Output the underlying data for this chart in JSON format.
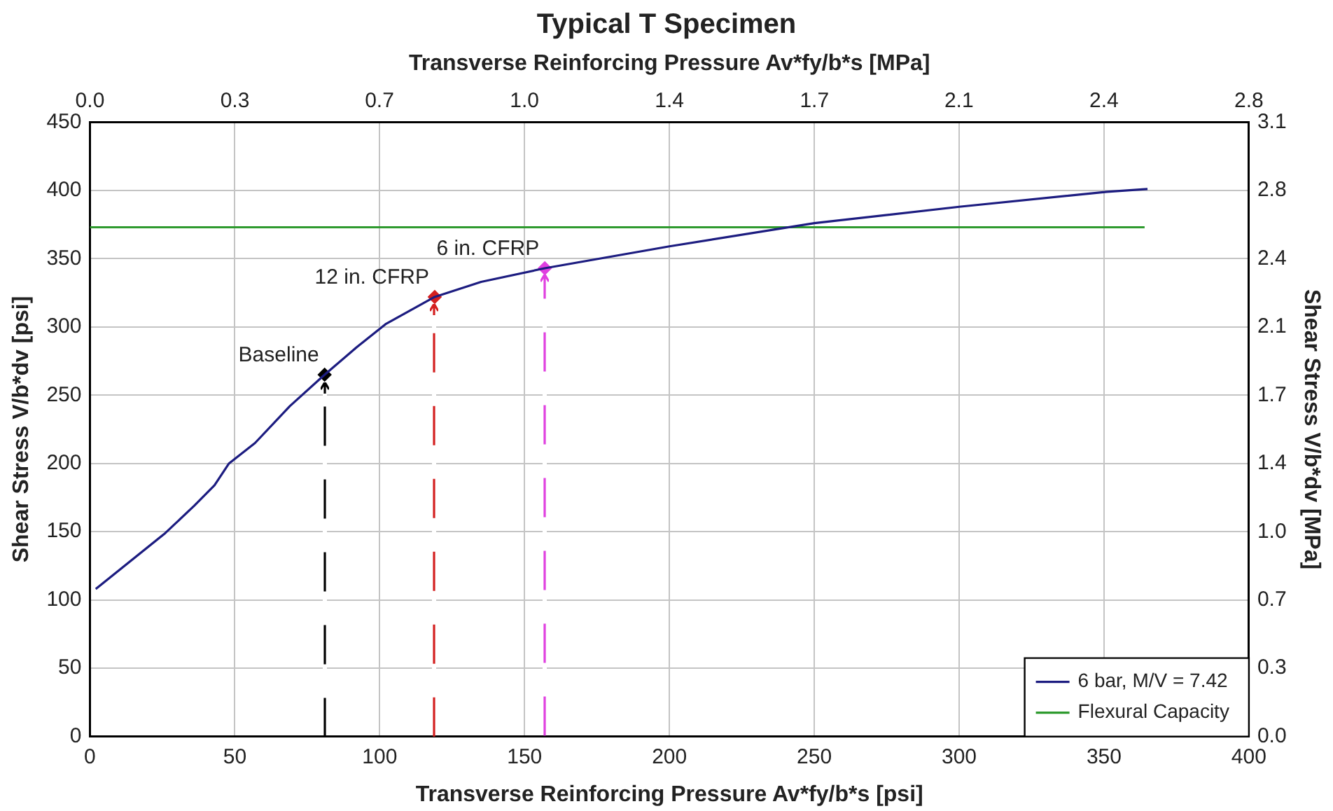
{
  "chart_data": {
    "type": "line",
    "title": "Typical T Specimen",
    "xlabel": "Transverse Reinforcing Pressure Av*fy/b*s [psi]",
    "x2label": "Transverse Reinforcing Pressure Av*fy/b*s [MPa]",
    "ylabel": "Shear Stress V/b*dv [psi]",
    "y2label": "Shear Stress V/b*dv [MPa]",
    "xlim": [
      0,
      400
    ],
    "xticks": [
      0,
      50,
      100,
      150,
      200,
      250,
      300,
      350,
      400
    ],
    "ylim": [
      0,
      450
    ],
    "yticks": [
      0,
      50,
      100,
      150,
      200,
      250,
      300,
      350,
      400,
      450
    ],
    "x2lim": [
      0,
      2.758
    ],
    "x2ticks": [
      {
        "value": 0,
        "label": "0.0"
      },
      {
        "value": 0.345,
        "label": "0.3"
      },
      {
        "value": 0.689,
        "label": "0.7"
      },
      {
        "value": 1.034,
        "label": "1.0"
      },
      {
        "value": 1.379,
        "label": "1.4"
      },
      {
        "value": 1.724,
        "label": "1.7"
      },
      {
        "value": 2.068,
        "label": "2.1"
      },
      {
        "value": 2.413,
        "label": "2.4"
      },
      {
        "value": 2.758,
        "label": "2.8"
      }
    ],
    "y2lim": [
      0,
      3.103
    ],
    "y2ticks": [
      {
        "value": 0,
        "label": "0.0"
      },
      {
        "value": 0.345,
        "label": "0.3"
      },
      {
        "value": 0.689,
        "label": "0.7"
      },
      {
        "value": 1.034,
        "label": "1.0"
      },
      {
        "value": 1.379,
        "label": "1.4"
      },
      {
        "value": 1.724,
        "label": "1.7"
      },
      {
        "value": 2.068,
        "label": "2.1"
      },
      {
        "value": 2.413,
        "label": "2.4"
      },
      {
        "value": 2.758,
        "label": "2.8"
      },
      {
        "value": 3.103,
        "label": "3.1"
      }
    ],
    "grid": true,
    "legend": "bottom right",
    "marker": "none",
    "line_style": "solid",
    "series": [
      {
        "name": "6 bar, M/V = 7.42",
        "color": "#1c1c80",
        "x": [
          2,
          26,
          36,
          43,
          48,
          57,
          69,
          81,
          92,
          102,
          119,
          135,
          157,
          200,
          250,
          300,
          351,
          365
        ],
        "values": [
          108,
          149,
          169,
          184,
          200,
          215,
          242,
          265,
          285,
          302,
          322,
          333,
          343,
          359,
          376,
          388,
          399,
          401
        ]
      },
      {
        "name": "Flexural Capacity",
        "color": "#2e9a2e",
        "x": [
          0,
          364
        ],
        "values": [
          373,
          373
        ]
      },
      {
        "type": "scatter",
        "color": "#000000",
        "marker": "diamond",
        "x": [
          81
        ],
        "values": [
          265
        ]
      },
      {
        "type": "scatter",
        "color": "#d42020",
        "marker": "diamond",
        "x": [
          119
        ],
        "values": [
          322
        ]
      },
      {
        "type": "scatter",
        "color": "#e040e0",
        "marker": "diamond",
        "x": [
          157
        ],
        "values": [
          343
        ]
      }
    ],
    "annotations": [
      {
        "text": "Baseline",
        "x": 81,
        "y": 265
      },
      {
        "text": "12 in. CFRP",
        "x": 119,
        "y": 322
      },
      {
        "text": "6 in. CFRP",
        "x": 157,
        "y": 343
      }
    ]
  }
}
